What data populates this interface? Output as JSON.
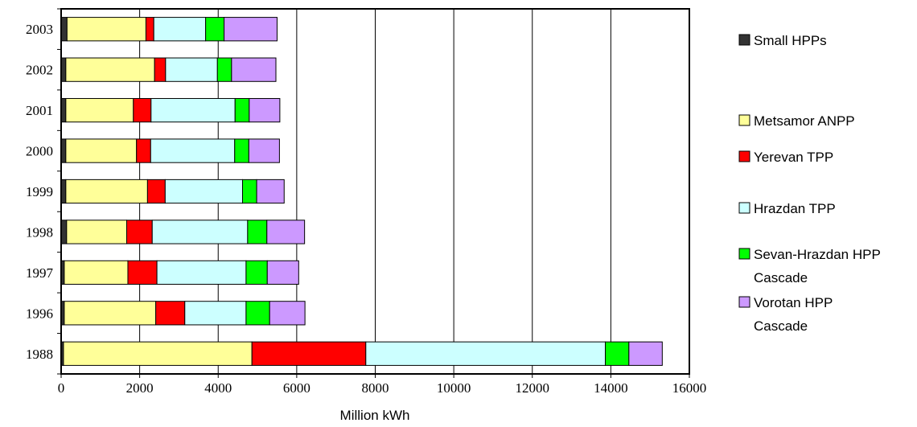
{
  "chart_data": {
    "type": "bar",
    "orientation": "horizontal",
    "stacked": true,
    "categories": [
      "1988",
      "1996",
      "1997",
      "1998",
      "1999",
      "2000",
      "2001",
      "2002",
      "2003"
    ],
    "series": [
      {
        "name": "Small HPPs",
        "color": "#333333",
        "values": [
          60,
          80,
          80,
          140,
          120,
          120,
          120,
          120,
          150
        ]
      },
      {
        "name": "Metsamor ANPP",
        "color": "#FFFF99",
        "values": [
          4800,
          2330,
          1620,
          1530,
          2080,
          1800,
          1720,
          2260,
          2010
        ]
      },
      {
        "name": "Yerevan TPP",
        "color": "#FF0000",
        "values": [
          2900,
          740,
          740,
          650,
          450,
          360,
          450,
          280,
          200
        ]
      },
      {
        "name": "Hrazdan TPP",
        "color": "#CCFFFF",
        "values": [
          6100,
          1560,
          2270,
          2430,
          1970,
          2140,
          2140,
          1320,
          1320
        ]
      },
      {
        "name": "Sevan-Hrazdan HPP Cascade",
        "color": "#00FF00",
        "values": [
          600,
          600,
          540,
          490,
          360,
          360,
          360,
          360,
          470
        ]
      },
      {
        "name": "Vorotan HPP Cascade",
        "color": "#CC99FF",
        "values": [
          850,
          900,
          800,
          960,
          700,
          780,
          780,
          1130,
          1350
        ]
      }
    ],
    "xlabel": "Million kWh",
    "ylabel": "",
    "xlim": [
      0,
      16000
    ],
    "xticks": [
      "0",
      "2000",
      "4000",
      "6000",
      "8000",
      "10000",
      "12000",
      "14000",
      "16000"
    ],
    "grid": "vertical",
    "legend_position": "right",
    "legend_labels": [
      [
        "Small HPPs"
      ],
      [
        "Metsamor ANPP"
      ],
      [
        "Yerevan TPP"
      ],
      [
        "Hrazdan TPP"
      ],
      [
        "Sevan-Hrazdan HPP",
        "Cascade"
      ],
      [
        "Vorotan HPP",
        "Cascade"
      ]
    ]
  }
}
